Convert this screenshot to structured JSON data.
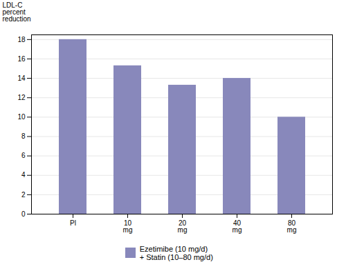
{
  "chart_data": {
    "type": "bar",
    "categories": [
      "Pl",
      "10\nmg",
      "20\nmg",
      "40\nmg",
      "80\nmg"
    ],
    "series": [
      {
        "name": "Ezetimibe (10 mg/d)\n+ Statin (10–80 mg/d)",
        "color": "#8888bb",
        "values": [
          18.0,
          15.3,
          13.3,
          14.0,
          10.0
        ]
      }
    ],
    "ylabel": "LDL-C\npercent\nreduction",
    "ylim": [
      0,
      18.486
    ],
    "yticks": [
      0,
      2,
      4,
      6,
      8,
      10,
      12,
      14,
      16,
      18
    ],
    "grid": true,
    "legend": "bottom"
  }
}
